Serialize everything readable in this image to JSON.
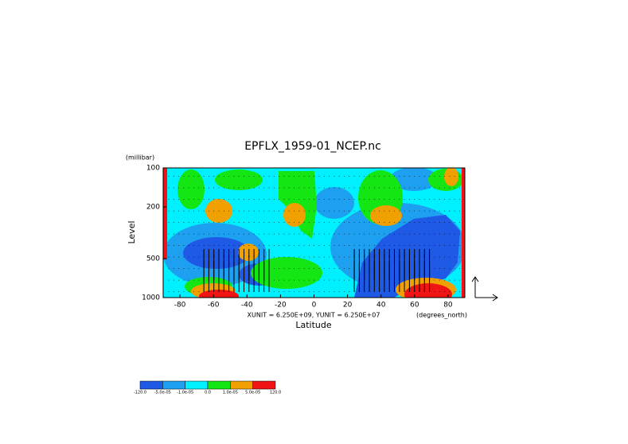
{
  "chart_data": {
    "type": "contour",
    "title": "EPFLX_1959-01_NCEP.nc",
    "y_unit_label": "(millibar)",
    "y_label": "Level",
    "x_label": "Latitude",
    "x_unit_label": "(degrees_north)",
    "vector_scale_label": "XUNIT = 6.250E+09, YUNIT = 6.250E+07",
    "xlim": [
      -90,
      90
    ],
    "xticks": [
      -80,
      -60,
      -40,
      -20,
      0,
      20,
      40,
      60,
      80
    ],
    "ylim": [
      1000,
      100
    ],
    "yticks": [
      100,
      200,
      500,
      1000
    ],
    "y_log_scale": true,
    "colorbar": {
      "levels": [
        {
          "value": -120,
          "label": "-120.0"
        },
        {
          "value": -5e-05,
          "label": "-5.0e-05"
        },
        {
          "value": -1e-05,
          "label": "-1.0e-05"
        },
        {
          "value": 0,
          "label": "0.0"
        },
        {
          "value": 1e-05,
          "label": "1.0e-05"
        },
        {
          "value": 5e-05,
          "label": "5.0e-05"
        },
        {
          "value": 120,
          "label": "120.0"
        }
      ],
      "colors": [
        "#1e5ae6",
        "#1ea0f0",
        "#00f0ff",
        "#14e614",
        "#f0a000",
        "#f01414"
      ]
    }
  }
}
